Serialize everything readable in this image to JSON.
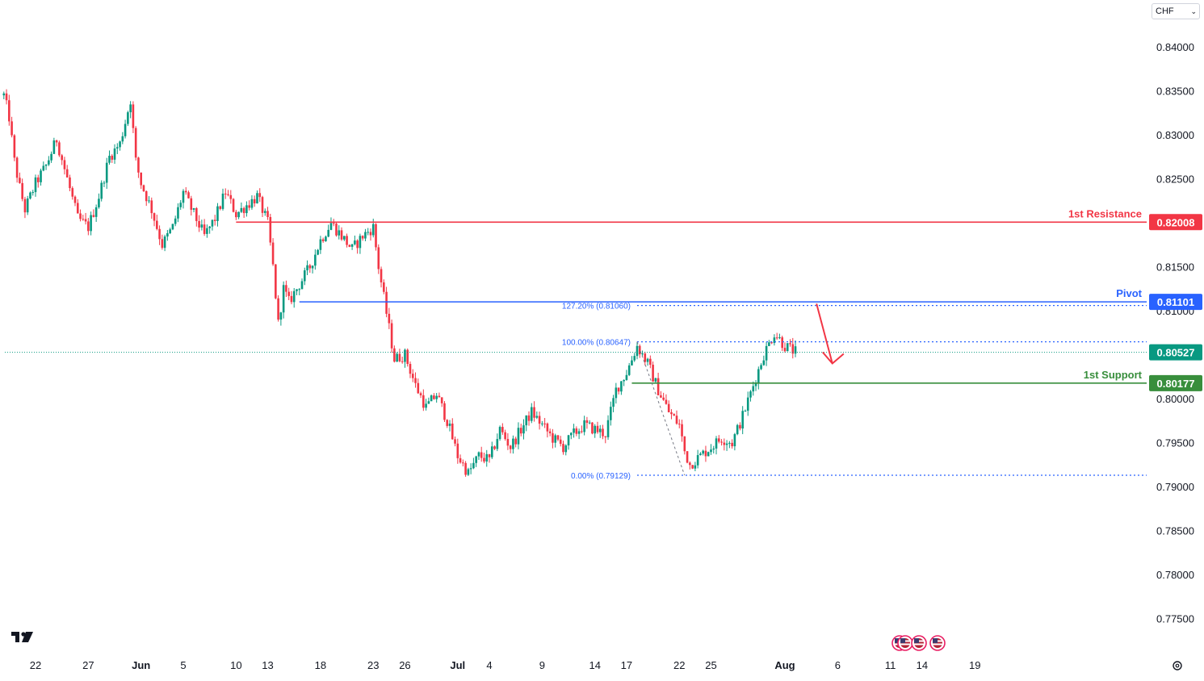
{
  "currency_selector": {
    "value": "CHF",
    "chevron_icon": "chevron-down-icon"
  },
  "logo_icon": "tradingview-logo-icon",
  "settings_icon": "gear-icon",
  "event_flags": [
    "us-flag-icon",
    "us-flag-icon",
    "us-flag-icon",
    "us-flag-icon"
  ],
  "colors": {
    "up": "#089981",
    "down": "#f23645",
    "resistance": "#f23645",
    "pivot": "#2962ff",
    "support": "#388e3c",
    "current": "#089981",
    "fib": "#2962ff",
    "arrow": "#f23645"
  },
  "chart_data": {
    "type": "candlestick",
    "title": "",
    "ylim": [
      0.77,
      0.8425
    ],
    "y_ticks": [
      "0.84000",
      "0.83500",
      "0.83000",
      "0.82500",
      "0.81500",
      "0.81000",
      "0.80000",
      "0.79500",
      "0.79000",
      "0.78500",
      "0.78000",
      "0.77500"
    ],
    "x_ticks": [
      {
        "label": "22",
        "day": 0
      },
      {
        "label": "27",
        "day": 5
      },
      {
        "label": "Jun",
        "day": 10,
        "month": true
      },
      {
        "label": "5",
        "day": 14
      },
      {
        "label": "10",
        "day": 19
      },
      {
        "label": "13",
        "day": 22
      },
      {
        "label": "18",
        "day": 27
      },
      {
        "label": "23",
        "day": 32
      },
      {
        "label": "26",
        "day": 35
      },
      {
        "label": "Jul",
        "day": 40,
        "month": true
      },
      {
        "label": "4",
        "day": 43
      },
      {
        "label": "9",
        "day": 48
      },
      {
        "label": "14",
        "day": 53
      },
      {
        "label": "17",
        "day": 56
      },
      {
        "label": "22",
        "day": 61
      },
      {
        "label": "25",
        "day": 64
      },
      {
        "label": "Aug",
        "day": 71,
        "month": true
      },
      {
        "label": "6",
        "day": 76
      },
      {
        "label": "11",
        "day": 81
      },
      {
        "label": "14",
        "day": 84
      },
      {
        "label": "19",
        "day": 89
      }
    ],
    "path": [
      [
        -3,
        0.8345
      ],
      [
        -2.5,
        0.832
      ],
      [
        -2,
        0.827
      ],
      [
        -1.5,
        0.824
      ],
      [
        -1,
        0.8215
      ],
      [
        0,
        0.8245
      ],
      [
        1,
        0.8265
      ],
      [
        2,
        0.8295
      ],
      [
        3,
        0.825
      ],
      [
        4,
        0.8205
      ],
      [
        5,
        0.8195
      ],
      [
        6,
        0.823
      ],
      [
        7,
        0.8275
      ],
      [
        8,
        0.829
      ],
      [
        9,
        0.834
      ],
      [
        9.5,
        0.827
      ],
      [
        10,
        0.8245
      ],
      [
        11,
        0.8215
      ],
      [
        12,
        0.8175
      ],
      [
        13,
        0.8195
      ],
      [
        14,
        0.8235
      ],
      [
        15,
        0.821
      ],
      [
        16,
        0.8185
      ],
      [
        17,
        0.8205
      ],
      [
        18,
        0.8235
      ],
      [
        19,
        0.821
      ],
      [
        20,
        0.822
      ],
      [
        21,
        0.823
      ],
      [
        22,
        0.82
      ],
      [
        22.5,
        0.815
      ],
      [
        23,
        0.8085
      ],
      [
        23.5,
        0.8125
      ],
      [
        24,
        0.811
      ],
      [
        25,
        0.813
      ],
      [
        26,
        0.815
      ],
      [
        27,
        0.818
      ],
      [
        28,
        0.82
      ],
      [
        29,
        0.8185
      ],
      [
        30,
        0.817
      ],
      [
        31,
        0.8185
      ],
      [
        32,
        0.8195
      ],
      [
        32.5,
        0.815
      ],
      [
        33,
        0.8115
      ],
      [
        34,
        0.8045
      ],
      [
        35,
        0.805
      ],
      [
        36,
        0.8015
      ],
      [
        37,
        0.799
      ],
      [
        38,
        0.8005
      ],
      [
        39,
        0.7975
      ],
      [
        40,
        0.7935
      ],
      [
        41,
        0.7915
      ],
      [
        42,
        0.7935
      ],
      [
        43,
        0.793
      ],
      [
        44,
        0.7965
      ],
      [
        45,
        0.7945
      ],
      [
        46,
        0.7965
      ],
      [
        47,
        0.7985
      ],
      [
        48,
        0.797
      ],
      [
        49,
        0.7955
      ],
      [
        50,
        0.7945
      ],
      [
        51,
        0.796
      ],
      [
        52,
        0.797
      ],
      [
        53,
        0.7965
      ],
      [
        54,
        0.796
      ],
      [
        55,
        0.801
      ],
      [
        56,
        0.803
      ],
      [
        57,
        0.806
      ],
      [
        58,
        0.804
      ],
      [
        59,
        0.801
      ],
      [
        60,
        0.7985
      ],
      [
        61,
        0.797
      ],
      [
        61.5,
        0.794
      ],
      [
        62,
        0.7925
      ],
      [
        63,
        0.7935
      ],
      [
        64,
        0.7945
      ],
      [
        65,
        0.7955
      ],
      [
        66,
        0.795
      ],
      [
        67,
        0.798
      ],
      [
        68,
        0.8015
      ],
      [
        69,
        0.805
      ],
      [
        70,
        0.8075
      ],
      [
        71,
        0.806
      ],
      [
        72,
        0.8053
      ]
    ],
    "current_price": "0.80527",
    "levels": [
      {
        "name": "1st Resistance",
        "value": "0.82008",
        "start_day": 19,
        "color_key": "resistance"
      },
      {
        "name": "Pivot",
        "value": "0.81101",
        "start_day": 25,
        "color_key": "pivot"
      },
      {
        "name": "1st Support",
        "value": "0.80177",
        "start_day": 56.5,
        "color_key": "support"
      }
    ],
    "fibonacci": [
      {
        "label": "127.20% (0.81060)",
        "value": 0.8106
      },
      {
        "label": "100.00% (0.80647)",
        "value": 0.80647
      },
      {
        "label": "0.00% (0.79129)",
        "value": 0.79129
      }
    ],
    "fib_start_day": 57,
    "projection": {
      "from_day": 74,
      "from_value": 0.8108,
      "to_day": 75.5,
      "to_value": 0.804
    }
  }
}
